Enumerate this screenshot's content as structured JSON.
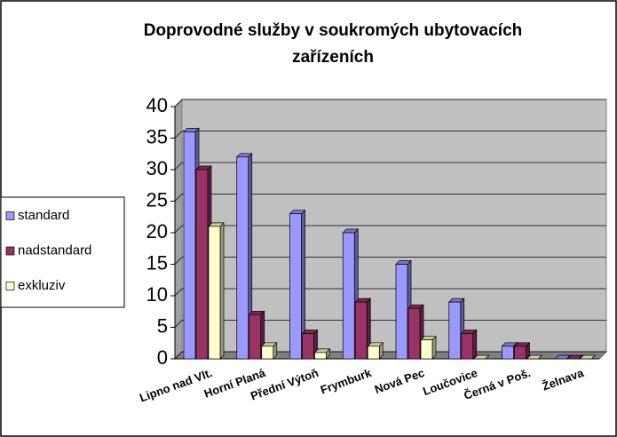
{
  "chart_data": {
    "type": "bar3d",
    "title": "Doprovodné služby v soukromých ubytovacích zařízeních",
    "categories": [
      "Lipno nad Vlt.",
      "Horní Planá",
      "Přední Výtoň",
      "Frymburk",
      "Nová Pec",
      "Loučovice",
      "Černá v Poš.",
      "Želnava"
    ],
    "series": [
      {
        "name": "standard",
        "color": "#9999ff",
        "values": [
          36,
          32,
          23,
          20,
          15,
          9,
          2,
          0
        ]
      },
      {
        "name": "nadstandard",
        "color": "#993366",
        "values": [
          30,
          7,
          4,
          9,
          8,
          4,
          2,
          0
        ]
      },
      {
        "name": "exkluziv",
        "color": "#ffffcc",
        "values": [
          21,
          2,
          1,
          2,
          3,
          0,
          0,
          0
        ]
      }
    ],
    "ylim": [
      0,
      40
    ],
    "yticks": [
      0,
      5,
      10,
      15,
      20,
      25,
      30,
      35,
      40
    ],
    "grid": true,
    "legend": "left"
  }
}
